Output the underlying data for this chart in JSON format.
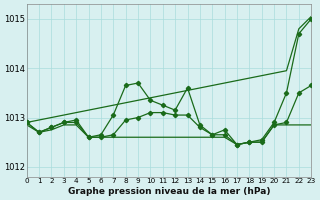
{
  "background_color": "#d8f0f0",
  "grid_color": "#aadddd",
  "line_color": "#1a6b1a",
  "title": "Graphe pression niveau de la mer (hPa)",
  "xlim": [
    0,
    23
  ],
  "ylim": [
    1011.8,
    1015.3
  ],
  "xticks": [
    0,
    1,
    2,
    3,
    4,
    5,
    6,
    7,
    8,
    9,
    10,
    11,
    12,
    13,
    14,
    15,
    16,
    17,
    18,
    19,
    20,
    21,
    22,
    23
  ],
  "yticks": [
    1012,
    1013,
    1014,
    1015
  ],
  "s_diagonal": [
    1012.9,
    1012.95,
    1013.0,
    1013.05,
    1013.1,
    1013.15,
    1013.2,
    1013.25,
    1013.3,
    1013.35,
    1013.4,
    1013.45,
    1013.5,
    1013.55,
    1013.6,
    1013.65,
    1013.7,
    1013.75,
    1013.8,
    1013.85,
    1013.9,
    1013.95,
    1014.8,
    1015.05
  ],
  "s_zigzag_high": [
    1012.9,
    1012.7,
    1012.8,
    1012.9,
    1012.95,
    1012.6,
    1012.65,
    1013.05,
    1013.65,
    1013.7,
    1013.35,
    1013.25,
    1013.15,
    1013.6,
    1012.85,
    1012.65,
    1012.75,
    1012.45,
    1012.5,
    1012.55,
    1012.9,
    1013.5,
    1014.7,
    1015.0
  ],
  "s_zigzag_low": [
    1012.9,
    1012.7,
    1012.8,
    1012.9,
    1012.9,
    1012.6,
    1012.6,
    1012.65,
    1012.95,
    1013.0,
    1013.1,
    1013.1,
    1013.05,
    1013.05,
    1012.8,
    1012.65,
    1012.65,
    1012.45,
    1012.5,
    1012.5,
    1012.85,
    1012.9,
    1013.5,
    1013.65
  ],
  "s_flat": [
    1012.85,
    1012.7,
    1012.75,
    1012.85,
    1012.85,
    1012.6,
    1012.6,
    1012.6,
    1012.6,
    1012.6,
    1012.6,
    1012.6,
    1012.6,
    1012.6,
    1012.6,
    1012.6,
    1012.6,
    1012.45,
    1012.5,
    1012.5,
    1012.85,
    1012.85,
    1012.85,
    1012.85
  ]
}
